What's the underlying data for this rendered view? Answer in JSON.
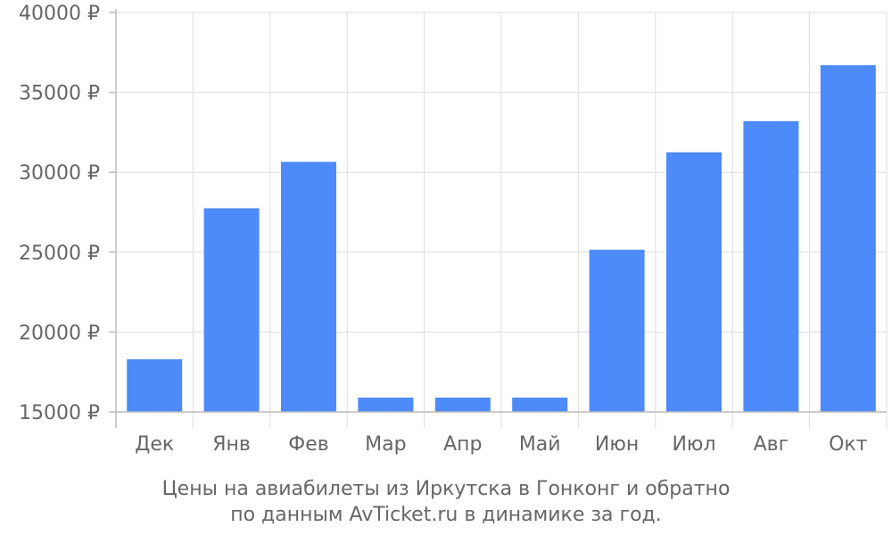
{
  "chart_data": {
    "type": "bar",
    "categories": [
      "Дек",
      "Янв",
      "Фев",
      "Мар",
      "Апр",
      "Май",
      "Июн",
      "Июл",
      "Авг",
      "Окт"
    ],
    "values": [
      18300,
      27750,
      30650,
      15900,
      15900,
      15900,
      25150,
      31250,
      33200,
      36700
    ],
    "ylim": [
      15000,
      40000
    ],
    "yticks": [
      15000,
      20000,
      25000,
      30000,
      35000,
      40000
    ],
    "ytick_labels": [
      "15000 ₽",
      "20000 ₽",
      "25000 ₽",
      "30000 ₽",
      "35000 ₽",
      "40000 ₽"
    ],
    "grid": true,
    "bar_color": "#4d8afa",
    "caption": [
      "Цены на авиабилеты из Иркутска в Гонконг и обратно",
      "по данным AvTicket.ru в динамике за год."
    ]
  }
}
